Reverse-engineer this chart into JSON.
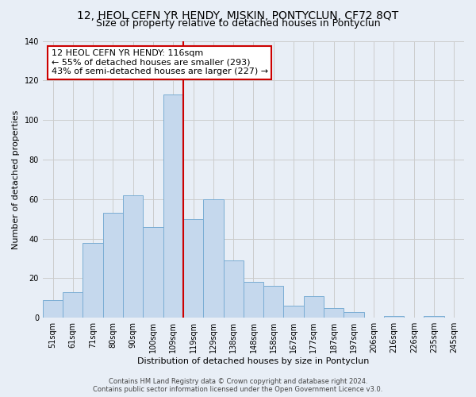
{
  "title": "12, HEOL CEFN YR HENDY, MISKIN, PONTYCLUN, CF72 8QT",
  "subtitle": "Size of property relative to detached houses in Pontyclun",
  "xlabel": "Distribution of detached houses by size in Pontyclun",
  "ylabel": "Number of detached properties",
  "bar_labels": [
    "51sqm",
    "61sqm",
    "71sqm",
    "80sqm",
    "90sqm",
    "100sqm",
    "109sqm",
    "119sqm",
    "129sqm",
    "138sqm",
    "148sqm",
    "158sqm",
    "167sqm",
    "177sqm",
    "187sqm",
    "197sqm",
    "206sqm",
    "216sqm",
    "226sqm",
    "235sqm",
    "245sqm"
  ],
  "bar_heights": [
    9,
    13,
    38,
    53,
    62,
    46,
    113,
    50,
    60,
    29,
    18,
    16,
    6,
    11,
    5,
    3,
    0,
    1,
    0,
    1,
    0
  ],
  "bar_color": "#c5d8ed",
  "bar_edge_color": "#7aadd4",
  "vline_x_index": 6.5,
  "vline_color": "#cc0000",
  "annotation_line1": "12 HEOL CEFN YR HENDY: 116sqm",
  "annotation_line2": "← 55% of detached houses are smaller (293)",
  "annotation_line3": "43% of semi-detached houses are larger (227) →",
  "annotation_box_color": "#ffffff",
  "annotation_box_edge_color": "#cc0000",
  "ylim": [
    0,
    140
  ],
  "yticks": [
    0,
    20,
    40,
    60,
    80,
    100,
    120,
    140
  ],
  "grid_color": "#cccccc",
  "background_color": "#e8eef6",
  "footer_line1": "Contains HM Land Registry data © Crown copyright and database right 2024.",
  "footer_line2": "Contains public sector information licensed under the Open Government Licence v3.0.",
  "title_fontsize": 10,
  "subtitle_fontsize": 9,
  "annotation_fontsize": 8,
  "label_fontsize": 8,
  "tick_fontsize": 7,
  "footer_fontsize": 6
}
